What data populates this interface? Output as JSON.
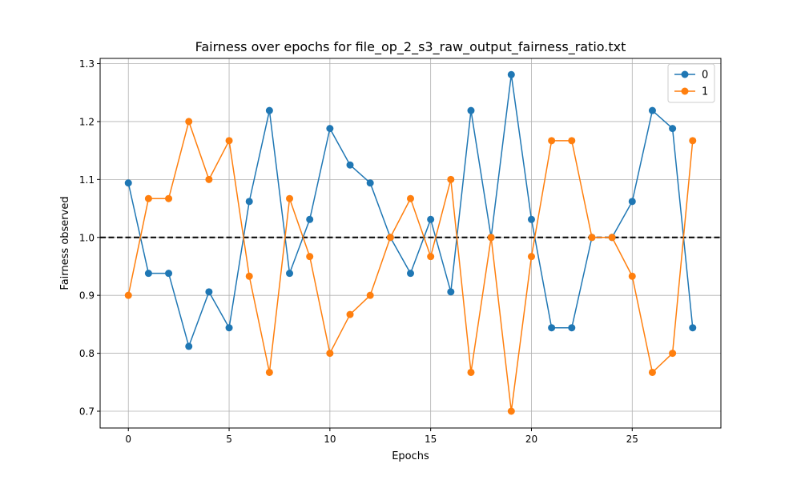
{
  "chart_data": {
    "type": "line",
    "title": "Fairness over epochs for file_op_2_s3_raw_output_fairness_ratio.txt",
    "xlabel": "Epochs",
    "ylabel": "Fairness observed",
    "xlim": [
      -1.4,
      29.4
    ],
    "ylim": [
      0.671,
      1.309
    ],
    "xticks": [
      0,
      5,
      10,
      15,
      20,
      25
    ],
    "yticks": [
      0.7,
      0.8,
      0.9,
      1.0,
      1.1,
      1.2,
      1.3
    ],
    "ytick_labels": [
      "0.7",
      "0.8",
      "0.9",
      "1.0",
      "1.1",
      "1.2",
      "1.3"
    ],
    "grid": true,
    "legend_position": "top-right",
    "reference_line": {
      "y": 1.0,
      "style": "dashed",
      "color": "#000000"
    },
    "x": [
      0,
      1,
      2,
      3,
      4,
      5,
      6,
      7,
      8,
      9,
      10,
      11,
      12,
      13,
      14,
      15,
      16,
      17,
      18,
      19,
      20,
      21,
      22,
      23,
      24,
      25,
      26,
      27,
      28
    ],
    "series": [
      {
        "name": "0",
        "color": "#1f77b4",
        "values": [
          1.094,
          0.938,
          0.938,
          0.812,
          0.906,
          0.844,
          1.062,
          1.219,
          0.938,
          1.031,
          1.188,
          1.125,
          1.094,
          1.0,
          0.938,
          1.031,
          0.906,
          1.219,
          1.0,
          1.281,
          1.031,
          0.844,
          0.844,
          1.0,
          1.0,
          1.062,
          1.219,
          1.188,
          0.844
        ]
      },
      {
        "name": "1",
        "color": "#ff7f0e",
        "values": [
          0.9,
          1.067,
          1.067,
          1.2,
          1.1,
          1.167,
          0.933,
          0.767,
          1.067,
          0.967,
          0.8,
          0.867,
          0.9,
          1.0,
          1.067,
          0.967,
          1.1,
          0.767,
          1.0,
          0.7,
          0.967,
          1.167,
          1.167,
          1.0,
          1.0,
          0.933,
          0.767,
          0.8,
          1.167
        ]
      }
    ]
  }
}
